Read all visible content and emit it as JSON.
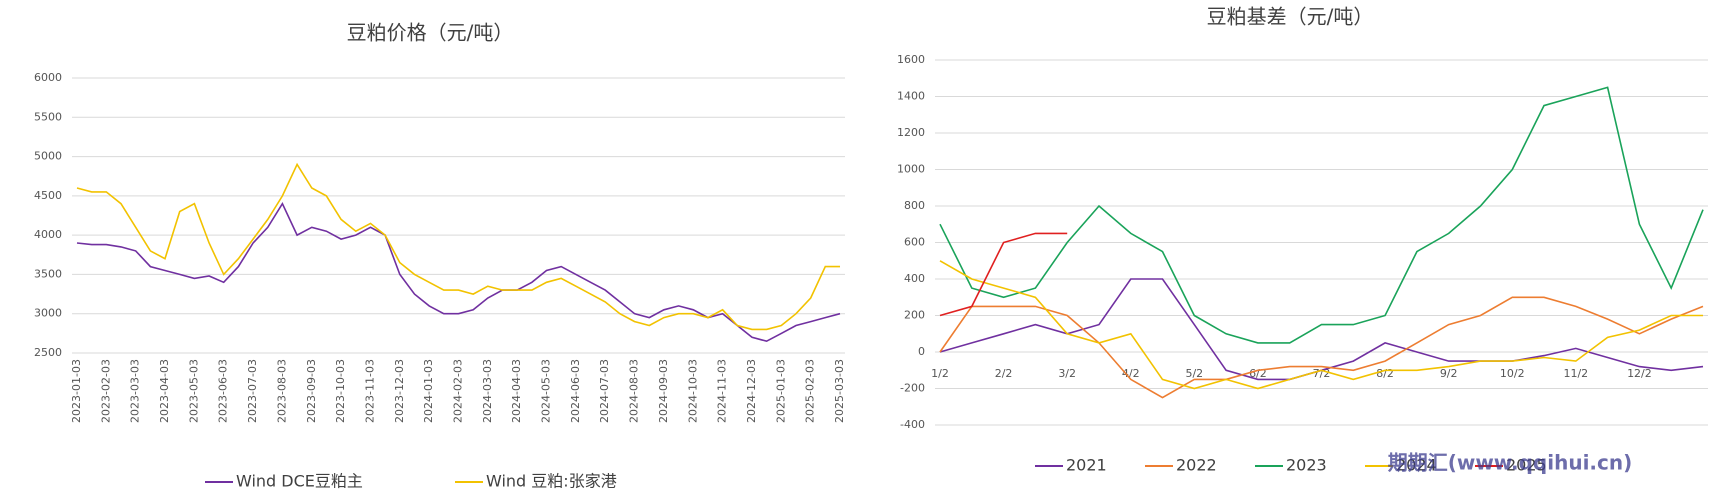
{
  "chart_data": [
    {
      "type": "line",
      "title": "豆粕价格（元/吨）",
      "categories": [
        "2023-01-03",
        null,
        "2023-02-03",
        null,
        "2023-03-03",
        null,
        "2023-04-03",
        null,
        "2023-05-03",
        null,
        "2023-06-03",
        null,
        "2023-07-03",
        null,
        "2023-08-03",
        null,
        "2023-09-03",
        null,
        "2023-10-03",
        null,
        "2023-11-03",
        null,
        "2023-12-03",
        null,
        "2024-01-03",
        null,
        "2024-02-03",
        null,
        "2024-03-03",
        null,
        "2024-04-03",
        null,
        "2024-05-03",
        null,
        "2024-06-03",
        null,
        "2024-07-03",
        null,
        "2024-08-03",
        null,
        "2024-09-03",
        null,
        "2024-10-03",
        null,
        "2024-11-03",
        null,
        "2024-12-03",
        null,
        "2025-01-03",
        null,
        "2025-02-03",
        null,
        "2025-03-03"
      ],
      "series": [
        {
          "name": "Wind DCE豆粕主",
          "color": "#7030a0",
          "values": [
            3900,
            3880,
            3880,
            3850,
            3800,
            3600,
            3550,
            3500,
            3450,
            3480,
            3400,
            3600,
            3900,
            4100,
            4400,
            4000,
            4100,
            4050,
            3950,
            4000,
            4100,
            4000,
            3500,
            3250,
            3100,
            3000,
            3000,
            3050,
            3200,
            3300,
            3300,
            3400,
            3550,
            3600,
            3500,
            3400,
            3300,
            3150,
            3000,
            2950,
            3050,
            3100,
            3050,
            2950,
            3000,
            2850,
            2700,
            2650,
            2750,
            2850,
            2900,
            2950,
            3000
          ]
        },
        {
          "name": "Wind 豆粕:张家港",
          "color": "#f2c200",
          "values": [
            4600,
            4550,
            4550,
            4400,
            4100,
            3800,
            3700,
            4300,
            4400,
            3900,
            3500,
            3700,
            3950,
            4200,
            4500,
            4900,
            4600,
            4500,
            4200,
            4050,
            4150,
            4000,
            3650,
            3500,
            3400,
            3300,
            3300,
            3250,
            3350,
            3300,
            3300,
            3300,
            3400,
            3450,
            3350,
            3250,
            3150,
            3000,
            2900,
            2850,
            2950,
            3000,
            3000,
            2950,
            3050,
            2850,
            2800,
            2800,
            2850,
            3000,
            3200,
            3600,
            3600
          ]
        }
      ],
      "ylim": [
        2500,
        6000
      ],
      "yticks": [
        2500,
        3000,
        3500,
        4000,
        4500,
        5000,
        5500,
        6000
      ],
      "grid": true,
      "legend": "bottom"
    },
    {
      "type": "line",
      "title": "豆粕基差（元/吨）",
      "categories": [
        "1/2",
        null,
        "2/2",
        null,
        "3/2",
        null,
        "4/2",
        null,
        "5/2",
        null,
        "6/2",
        null,
        "7/2",
        null,
        "8/2",
        null,
        "9/2",
        null,
        "10/2",
        null,
        "11/2",
        null,
        "12/2",
        null,
        null
      ],
      "series": [
        {
          "name": "2021",
          "color": "#7030a0",
          "values": [
            0,
            50,
            100,
            150,
            100,
            150,
            400,
            400,
            150,
            -100,
            -150,
            -150,
            -100,
            -50,
            50,
            0,
            -50,
            -50,
            -50,
            -20,
            20,
            -30,
            -80,
            -100,
            -80
          ]
        },
        {
          "name": "2022",
          "color": "#ed7d31",
          "values": [
            0,
            250,
            250,
            250,
            200,
            50,
            -150,
            -250,
            -150,
            -150,
            -100,
            -80,
            -80,
            -100,
            -50,
            50,
            150,
            200,
            300,
            300,
            250,
            180,
            100,
            180,
            250
          ]
        },
        {
          "name": "2023",
          "color": "#1aa35a",
          "values": [
            700,
            350,
            300,
            350,
            600,
            800,
            650,
            550,
            200,
            100,
            50,
            50,
            150,
            150,
            200,
            550,
            650,
            800,
            1000,
            1350,
            1400,
            1450,
            700,
            350,
            780
          ]
        },
        {
          "name": "2024",
          "color": "#f2c200",
          "values": [
            500,
            400,
            350,
            300,
            100,
            50,
            100,
            -150,
            -200,
            -150,
            -200,
            -150,
            -100,
            -150,
            -100,
            -100,
            -80,
            -50,
            -50,
            -30,
            -50,
            80,
            120,
            200,
            200
          ]
        },
        {
          "name": "2025",
          "color": "#e02020",
          "values": [
            200,
            250,
            600,
            650,
            650,
            null,
            null,
            null,
            null,
            null,
            null,
            null,
            null,
            null,
            null,
            null,
            null,
            null,
            null,
            null,
            null,
            null,
            null,
            null,
            null
          ]
        }
      ],
      "ylim": [
        -400,
        1600
      ],
      "yticks": [
        -400,
        -200,
        0,
        200,
        400,
        600,
        800,
        1000,
        1200,
        1400,
        1600
      ],
      "grid": true,
      "legend": "bottom"
    }
  ],
  "watermark": "期期汇(www.qqihui.cn)"
}
